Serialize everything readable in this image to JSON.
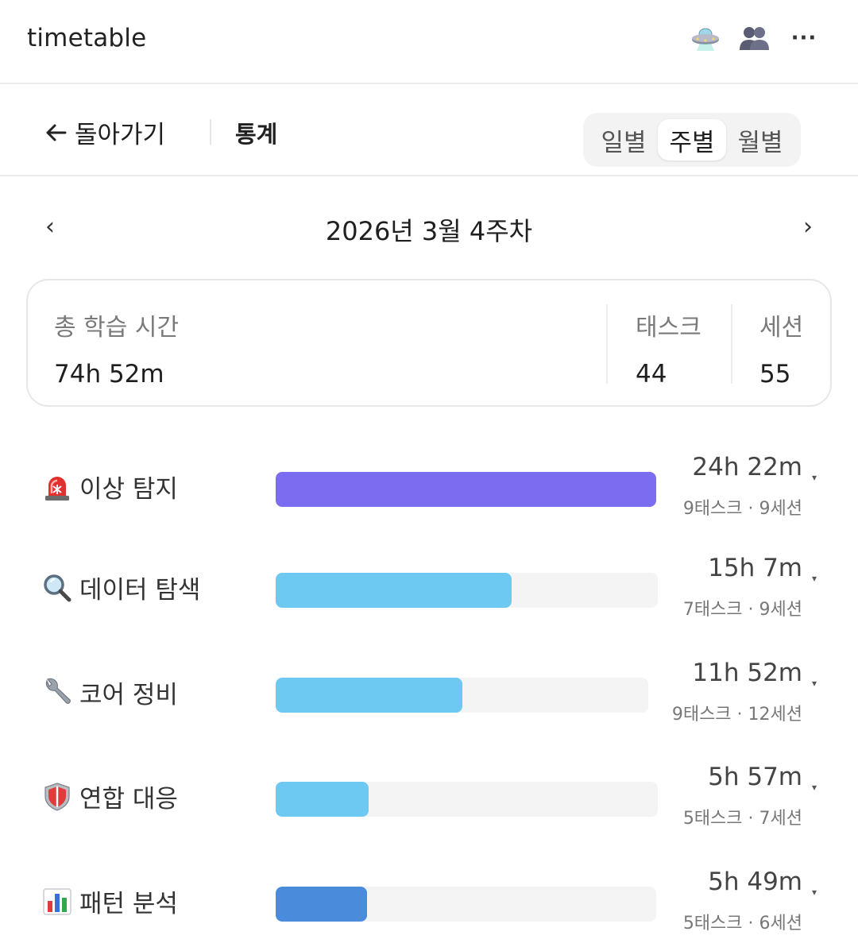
{
  "app": {
    "title": "timetable"
  },
  "header": {
    "icons": [
      "ufo-icon",
      "users-icon",
      "more-icon"
    ],
    "more_label": "···"
  },
  "subheader": {
    "back_arrow": "←",
    "back_label": "돌아가기",
    "page_title": "통계",
    "tabs": [
      {
        "label": "일별",
        "active": false
      },
      {
        "label": "주별",
        "active": true
      },
      {
        "label": "월별",
        "active": false
      }
    ]
  },
  "period": {
    "prev": "‹",
    "label": "2026년 3월 4주차",
    "next": "›"
  },
  "summary": {
    "total_label": "총 학습 시간",
    "total_value": "74h 52m",
    "tasks_label": "태스크",
    "tasks_value": "44",
    "sessions_label": "세션",
    "sessions_value": "55"
  },
  "categories": [
    {
      "icon": "siren-icon",
      "label": "이상 탐지",
      "time": "24h 22m",
      "meta": "9태스크 · 9세션",
      "fill_fraction": 1.0,
      "color": "#7B6CF0",
      "caret": "▾"
    },
    {
      "icon": "magnifier-icon",
      "label": "데이터 탐색",
      "time": "15h 7m",
      "meta": "7태스크 · 9세션",
      "fill_fraction": 0.62,
      "color": "#6EC9F2",
      "caret": "▾"
    },
    {
      "icon": "wrench-icon",
      "label": "코어 정비",
      "time": "11h 52m",
      "meta": "9태스크 · 12세션",
      "fill_fraction": 0.49,
      "color": "#6EC9F2",
      "caret": "▾"
    },
    {
      "icon": "shield-icon",
      "label": "연합 대응",
      "time": "5h 57m",
      "meta": "5태스크 · 7세션",
      "fill_fraction": 0.245,
      "color": "#6EC9F2",
      "caret": "▾"
    },
    {
      "icon": "bar-chart-icon",
      "label": "패턴 분석",
      "time": "5h 49m",
      "meta": "5태스크 · 6세션",
      "fill_fraction": 0.24,
      "color": "#4A8BDB",
      "caret": "▾"
    }
  ]
}
